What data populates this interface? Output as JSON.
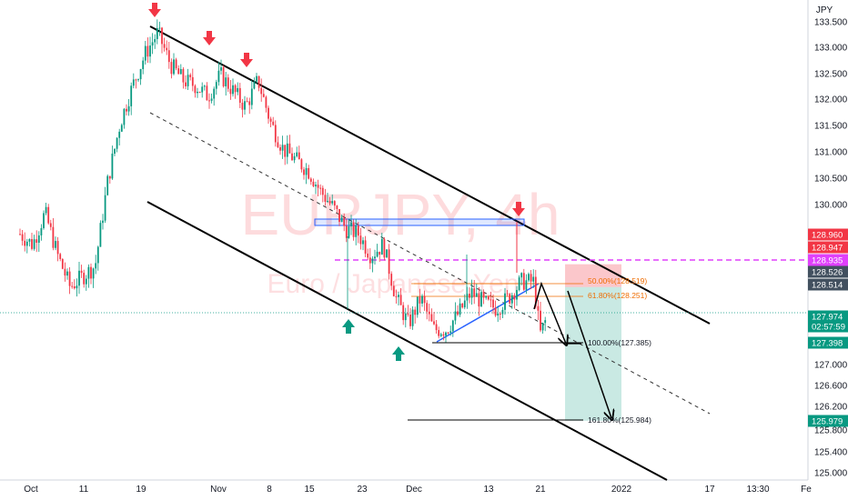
{
  "watermark": {
    "symbol": "EURJPY, 4h",
    "description": "Euro / Japanese Yen"
  },
  "axis": {
    "currency": "JPY",
    "y_ticks": [
      "133.500",
      "133.000",
      "132.500",
      "132.000",
      "131.500",
      "131.000",
      "130.500",
      "130.000",
      "128.960",
      "128.947",
      "128.514",
      "127.000",
      "126.600",
      "126.200",
      "125.800",
      "125.400",
      "125.000"
    ],
    "x_ticks": [
      "Oct",
      "11",
      "19",
      "Nov",
      "8",
      "15",
      "23",
      "Dec",
      "13",
      "21",
      "2022",
      "17",
      "13:30",
      "Fe"
    ]
  },
  "price_tags": [
    {
      "id": "tag-128960",
      "label": "128.960",
      "color": "#f23645"
    },
    {
      "id": "tag-128947",
      "label": "128.947",
      "color": "#f23645"
    },
    {
      "id": "tag-128935",
      "label": "128.935",
      "color": "#e040fb"
    },
    {
      "id": "tag-128526",
      "label": "128.526",
      "color": "#42505f"
    },
    {
      "id": "tag-128514",
      "label": "128.514",
      "color": "#42505f"
    },
    {
      "id": "tag-last",
      "label": "127.974",
      "sub": "02:57:59",
      "color": "#089981"
    },
    {
      "id": "tag-127398",
      "label": "127.398",
      "color": "#089981"
    },
    {
      "id": "tag-125979",
      "label": "125.979",
      "color": "#089981"
    }
  ],
  "fib_labels": {
    "f50": "50.00%(128.519)",
    "f618": "61.80%(128.251)",
    "f100": "100.00%(127.385)",
    "f1618": "161.80%(125.984)"
  },
  "colors": {
    "up": "#089981",
    "down": "#f23645",
    "channel": "#000000",
    "zone": "#2962ff",
    "dashed_level": "#e040fb",
    "target": "#089981",
    "stop": "#f23645"
  },
  "chart_data": {
    "type": "candlestick",
    "symbol": "EURJPY",
    "timeframe": "4h",
    "ylim": [
      124.9,
      133.8
    ],
    "x_dates": [
      "2021-09-28",
      "2022-02-03"
    ],
    "price_path": [
      {
        "d": "2021-09-28",
        "p": 129.5
      },
      {
        "d": "2021-09-30",
        "p": 129.3
      },
      {
        "d": "2021-10-02",
        "p": 129.9
      },
      {
        "d": "2021-10-04",
        "p": 129.1
      },
      {
        "d": "2021-10-06",
        "p": 128.5
      },
      {
        "d": "2021-10-08",
        "p": 128.7
      },
      {
        "d": "2021-10-10",
        "p": 128.9
      },
      {
        "d": "2021-10-12",
        "p": 130.5
      },
      {
        "d": "2021-10-14",
        "p": 131.6
      },
      {
        "d": "2021-10-16",
        "p": 132.3
      },
      {
        "d": "2021-10-18",
        "p": 132.9
      },
      {
        "d": "2021-10-20",
        "p": 133.3
      },
      {
        "d": "2021-10-22",
        "p": 132.7
      },
      {
        "d": "2021-10-24",
        "p": 132.4
      },
      {
        "d": "2021-10-26",
        "p": 132.3
      },
      {
        "d": "2021-10-28",
        "p": 132.1
      },
      {
        "d": "2021-10-30",
        "p": 132.5
      },
      {
        "d": "2021-11-01",
        "p": 132.2
      },
      {
        "d": "2021-11-03",
        "p": 131.9
      },
      {
        "d": "2021-11-05",
        "p": 132.4
      },
      {
        "d": "2021-11-07",
        "p": 131.6
      },
      {
        "d": "2021-11-09",
        "p": 131.1
      },
      {
        "d": "2021-11-11",
        "p": 130.9
      },
      {
        "d": "2021-11-13",
        "p": 130.7
      },
      {
        "d": "2021-11-15",
        "p": 130.3
      },
      {
        "d": "2021-11-17",
        "p": 130.0
      },
      {
        "d": "2021-11-19",
        "p": 129.6
      },
      {
        "d": "2021-11-21",
        "p": 129.5
      },
      {
        "d": "2021-11-23",
        "p": 129.1
      },
      {
        "d": "2021-11-25",
        "p": 129.3
      },
      {
        "d": "2021-11-27",
        "p": 128.3
      },
      {
        "d": "2021-11-29",
        "p": 127.8
      },
      {
        "d": "2021-12-01",
        "p": 128.3
      },
      {
        "d": "2021-12-03",
        "p": 127.7
      },
      {
        "d": "2021-12-05",
        "p": 127.7
      },
      {
        "d": "2021-12-07",
        "p": 128.0
      },
      {
        "d": "2021-12-09",
        "p": 128.4
      },
      {
        "d": "2021-12-11",
        "p": 128.2
      },
      {
        "d": "2021-12-13",
        "p": 128.1
      },
      {
        "d": "2021-12-15",
        "p": 128.3
      },
      {
        "d": "2021-12-17",
        "p": 128.6
      },
      {
        "d": "2021-12-19",
        "p": 128.6
      },
      {
        "d": "2021-12-20",
        "p": 127.6
      },
      {
        "d": "2021-12-21",
        "p": 127.9
      }
    ],
    "levels": {
      "dashed_magenta": 128.935,
      "fib_50": 128.519,
      "fib_61_8": 128.251,
      "fib_100": 127.385,
      "fib_161_8": 125.984,
      "last_price": 127.974
    },
    "arrows": [
      {
        "dir": "down",
        "d": "2021-10-21",
        "p": 133.55
      },
      {
        "dir": "down",
        "d": "2021-10-31",
        "p": 133.0
      },
      {
        "dir": "down",
        "d": "2021-11-06",
        "p": 132.7
      },
      {
        "dir": "up",
        "d": "2021-11-20",
        "p": 127.6
      },
      {
        "dir": "up",
        "d": "2021-11-30",
        "p": 127.1
      },
      {
        "dir": "down",
        "d": "2021-12-18",
        "p": 129.85
      }
    ],
    "channel": {
      "upper": [
        {
          "d": "2021-10-20",
          "p": 133.45
        },
        {
          "d": "2022-01-13",
          "p": 127.85
        }
      ],
      "middle": [
        {
          "d": "2021-10-20",
          "p": 131.65
        },
        {
          "d": "2022-01-13",
          "p": 126.2
        }
      ],
      "lower": [
        {
          "d": "2021-10-20",
          "p": 129.95
        },
        {
          "d": "2022-01-07",
          "p": 124.95
        }
      ]
    },
    "zone": {
      "d1": "2021-11-21",
      "d2": "2021-12-25",
      "p_low": 129.57,
      "p_high": 129.65
    },
    "position": {
      "entry": 128.5,
      "stop": 128.93,
      "target": 125.98,
      "d1": "2021-12-24",
      "d2": "2022-01-02"
    },
    "projection": [
      {
        "d": "2021-12-21",
        "p": 127.9
      },
      {
        "d": "2021-12-23",
        "p": 128.45
      },
      {
        "d": "2021-12-26",
        "p": 127.35
      },
      {
        "d": "2021-12-30",
        "p": 125.95
      }
    ]
  }
}
